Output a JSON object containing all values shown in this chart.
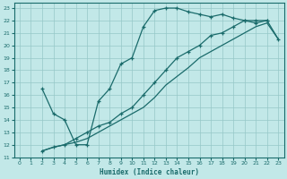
{
  "xlabel": "Humidex (Indice chaleur)",
  "bg_color": "#c2e8e8",
  "grid_color": "#96c8c8",
  "line_color": "#1a6b6b",
  "xlim": [
    -0.5,
    23.5
  ],
  "ylim": [
    11,
    23.4
  ],
  "xticks": [
    0,
    1,
    2,
    3,
    4,
    5,
    6,
    7,
    8,
    9,
    10,
    11,
    12,
    13,
    14,
    15,
    16,
    17,
    18,
    19,
    20,
    21,
    22,
    23
  ],
  "yticks": [
    11,
    12,
    13,
    14,
    15,
    16,
    17,
    18,
    19,
    20,
    21,
    22,
    23
  ],
  "curve1_x": [
    2,
    3,
    4,
    5,
    6,
    7,
    8,
    9,
    10,
    11,
    12,
    13,
    14,
    15,
    16,
    17,
    18,
    19,
    20,
    21,
    22
  ],
  "curve1_y": [
    16.5,
    14.5,
    14.0,
    12.0,
    12.0,
    15.5,
    16.5,
    18.5,
    19.0,
    21.5,
    22.8,
    23.0,
    23.0,
    22.7,
    22.5,
    22.3,
    22.5,
    22.2,
    22.0,
    21.8,
    22.0
  ],
  "curve2_x": [
    2,
    3,
    4,
    5,
    6,
    7,
    8,
    9,
    10,
    11,
    12,
    13,
    14,
    15,
    16,
    17,
    18,
    19,
    20,
    21,
    22,
    23
  ],
  "curve2_y": [
    11.5,
    11.8,
    12.0,
    12.5,
    13.0,
    13.5,
    13.8,
    14.5,
    15.0,
    16.0,
    17.0,
    18.0,
    19.0,
    19.5,
    20.0,
    20.8,
    21.0,
    21.5,
    22.0,
    22.0,
    22.0,
    20.5
  ],
  "curve3_x": [
    2,
    3,
    4,
    5,
    6,
    7,
    8,
    9,
    10,
    11,
    12,
    13,
    14,
    15,
    16,
    17,
    18,
    19,
    20,
    21,
    22,
    23
  ],
  "curve3_y": [
    11.5,
    11.8,
    12.0,
    12.2,
    12.5,
    13.0,
    13.5,
    14.0,
    14.5,
    15.0,
    15.8,
    16.8,
    17.5,
    18.2,
    19.0,
    19.5,
    20.0,
    20.5,
    21.0,
    21.5,
    21.8,
    20.5
  ]
}
